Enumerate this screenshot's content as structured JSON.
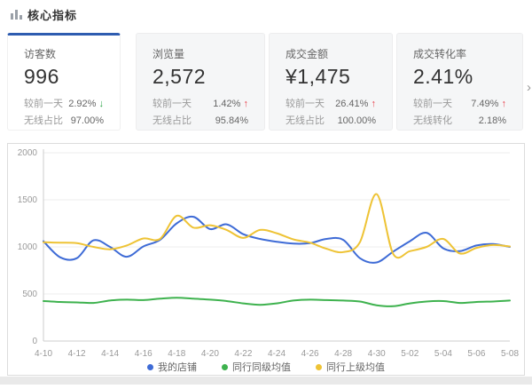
{
  "header": {
    "title": "核心指标"
  },
  "metrics": {
    "next_arrow": "›",
    "cards": [
      {
        "label": "访客数",
        "value": "996",
        "rows": [
          {
            "name": "较前一天",
            "value": "2.92%",
            "arrow": "↓",
            "trend_class": "trend-down"
          },
          {
            "name": "无线占比",
            "value": "97.00%",
            "arrow": "",
            "trend_class": ""
          }
        ]
      },
      {
        "label": "浏览量",
        "value": "2,572",
        "rows": [
          {
            "name": "较前一天",
            "value": "1.42%",
            "arrow": "↑",
            "trend_class": "trend-up"
          },
          {
            "name": "无线占比",
            "value": "95.84%",
            "arrow": "",
            "trend_class": ""
          }
        ]
      },
      {
        "label": "成交金额",
        "value": "¥1,475",
        "rows": [
          {
            "name": "较前一天",
            "value": "26.41%",
            "arrow": "↑",
            "trend_class": "trend-up"
          },
          {
            "name": "无线占比",
            "value": "100.00%",
            "arrow": "",
            "trend_class": ""
          }
        ]
      },
      {
        "label": "成交转化率",
        "value": "2.41%",
        "rows": [
          {
            "name": "较前一天",
            "value": "7.49%",
            "arrow": "↑",
            "trend_class": "trend-up"
          },
          {
            "name": "无线转化",
            "value": "2.18%",
            "arrow": "",
            "trend_class": ""
          }
        ]
      }
    ]
  },
  "chart_data": {
    "type": "line",
    "title": "",
    "xlabel": "",
    "ylabel": "",
    "ylim": [
      0,
      2000
    ],
    "yticks": [
      0,
      500,
      1000,
      1500,
      2000
    ],
    "grid": true,
    "legend_position": "bottom",
    "x": [
      "4-10",
      "4-11",
      "4-12",
      "4-13",
      "4-14",
      "4-15",
      "4-16",
      "4-17",
      "4-18",
      "4-19",
      "4-20",
      "4-21",
      "4-22",
      "4-23",
      "4-24",
      "4-25",
      "4-26",
      "4-27",
      "4-28",
      "4-29",
      "4-30",
      "5-01",
      "5-02",
      "5-03",
      "5-04",
      "5-05",
      "5-06",
      "5-07",
      "5-08"
    ],
    "x_tick_labels": [
      "4-10",
      "4-12",
      "4-14",
      "4-16",
      "4-18",
      "4-20",
      "4-22",
      "4-24",
      "4-26",
      "4-28",
      "4-30",
      "5-02",
      "5-04",
      "5-06",
      "5-08"
    ],
    "series": [
      {
        "name": "我的店铺",
        "color": "#3e6bd6",
        "values": [
          1060,
          890,
          880,
          1070,
          1000,
          895,
          1005,
          1075,
          1250,
          1320,
          1190,
          1240,
          1135,
          1085,
          1055,
          1035,
          1040,
          1085,
          1075,
          880,
          835,
          950,
          1060,
          1150,
          985,
          955,
          1015,
          1030,
          1000
        ]
      },
      {
        "name": "同行同级均值",
        "color": "#3eb24e",
        "values": [
          425,
          415,
          410,
          405,
          430,
          440,
          435,
          450,
          460,
          450,
          440,
          425,
          400,
          385,
          400,
          430,
          440,
          435,
          430,
          420,
          380,
          370,
          400,
          420,
          425,
          405,
          415,
          420,
          430
        ]
      },
      {
        "name": "同行上级均值",
        "color": "#eec335",
        "values": [
          1050,
          1045,
          1040,
          1000,
          975,
          1015,
          1090,
          1085,
          1330,
          1205,
          1230,
          1180,
          1095,
          1180,
          1145,
          1080,
          1045,
          980,
          945,
          1050,
          1560,
          925,
          955,
          1000,
          1085,
          930,
          990,
          1020,
          1005
        ]
      }
    ]
  }
}
